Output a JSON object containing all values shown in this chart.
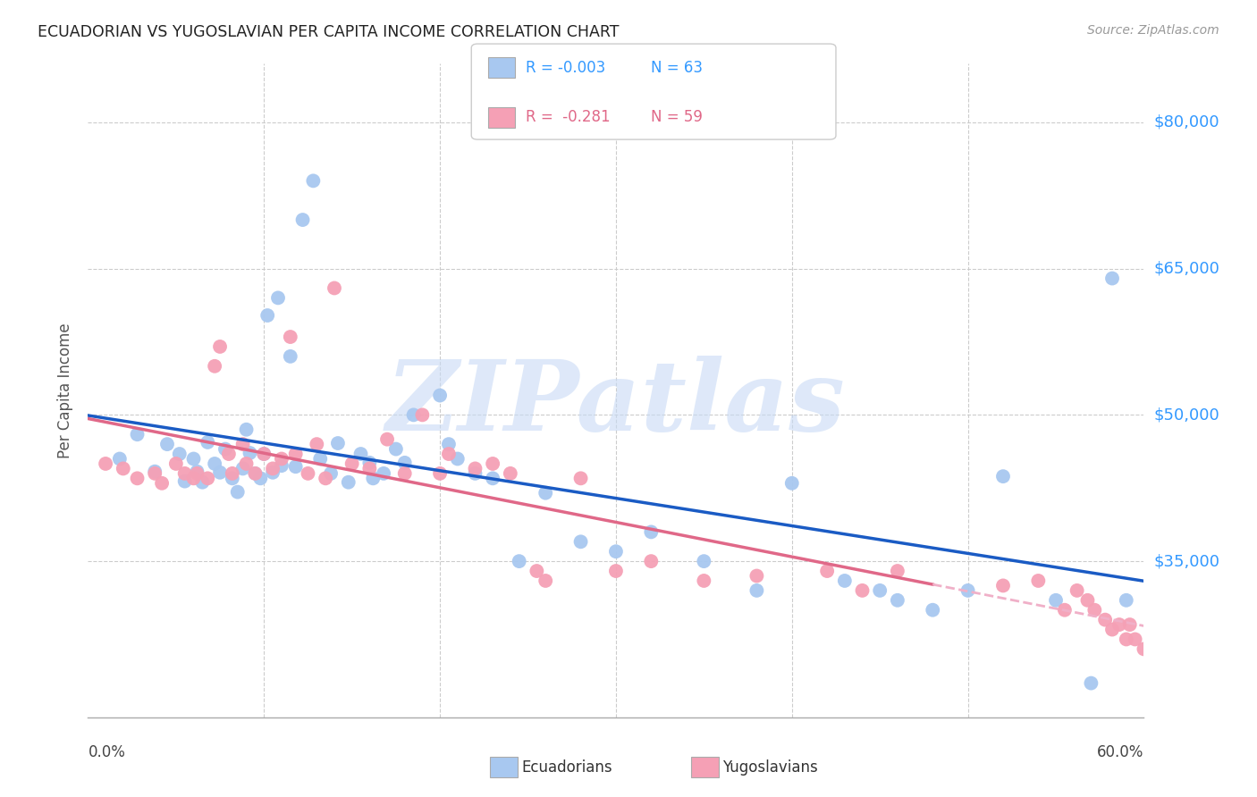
{
  "title": "ECUADORIAN VS YUGOSLAVIAN PER CAPITA INCOME CORRELATION CHART",
  "source": "Source: ZipAtlas.com",
  "ylabel": "Per Capita Income",
  "xmin": 0.0,
  "xmax": 0.6,
  "ymin": 19000,
  "ymax": 86000,
  "ecuadorians_color": "#a8c8f0",
  "yugoslavians_color": "#f5a0b5",
  "trend_ecu_color": "#1a5bc4",
  "trend_yugo_solid_color": "#e06888",
  "trend_yugo_dash_color": "#f0b0c8",
  "watermark": "ZIPatlas",
  "watermark_color": "#c8daf5",
  "grid_color": "#cccccc",
  "ytick_vals": [
    35000,
    50000,
    65000,
    80000
  ],
  "ytick_labels": [
    "$35,000",
    "$50,000",
    "$65,000",
    "$80,000"
  ],
  "ecu_R": "-0.003",
  "ecu_N": "63",
  "yugo_R": "-0.281",
  "yugo_N": "59",
  "ecu_scatter_x": [
    0.018,
    0.028,
    0.038,
    0.045,
    0.052,
    0.055,
    0.06,
    0.062,
    0.065,
    0.068,
    0.072,
    0.075,
    0.078,
    0.082,
    0.085,
    0.088,
    0.09,
    0.092,
    0.095,
    0.098,
    0.1,
    0.102,
    0.105,
    0.108,
    0.11,
    0.115,
    0.118,
    0.122,
    0.128,
    0.132,
    0.138,
    0.142,
    0.148,
    0.155,
    0.16,
    0.162,
    0.168,
    0.175,
    0.18,
    0.185,
    0.2,
    0.205,
    0.21,
    0.22,
    0.23,
    0.245,
    0.26,
    0.28,
    0.3,
    0.32,
    0.35,
    0.38,
    0.4,
    0.43,
    0.45,
    0.46,
    0.48,
    0.5,
    0.52,
    0.55,
    0.57,
    0.582,
    0.59
  ],
  "ecu_scatter_y": [
    45500,
    48000,
    44200,
    47000,
    46000,
    43200,
    45500,
    44200,
    43100,
    47200,
    45000,
    44100,
    46500,
    43500,
    42100,
    44500,
    48500,
    46100,
    44000,
    43500,
    46000,
    60200,
    44100,
    62000,
    44800,
    56000,
    44700,
    70000,
    74000,
    45500,
    44000,
    47100,
    43100,
    46000,
    45100,
    43500,
    44000,
    46500,
    45100,
    50000,
    52000,
    47000,
    45500,
    44000,
    43500,
    35000,
    42000,
    37000,
    36000,
    38000,
    35000,
    32000,
    43000,
    33000,
    32000,
    31000,
    30000,
    32000,
    43700,
    31000,
    22500,
    64000,
    31000
  ],
  "yugo_scatter_x": [
    0.01,
    0.02,
    0.028,
    0.038,
    0.042,
    0.05,
    0.055,
    0.06,
    0.062,
    0.068,
    0.072,
    0.075,
    0.08,
    0.082,
    0.088,
    0.09,
    0.095,
    0.1,
    0.105,
    0.11,
    0.115,
    0.118,
    0.125,
    0.13,
    0.135,
    0.14,
    0.15,
    0.16,
    0.17,
    0.18,
    0.19,
    0.2,
    0.205,
    0.22,
    0.23,
    0.24,
    0.255,
    0.26,
    0.28,
    0.3,
    0.32,
    0.35,
    0.38,
    0.42,
    0.44,
    0.46,
    0.52,
    0.54,
    0.555,
    0.562,
    0.568,
    0.572,
    0.578,
    0.582,
    0.586,
    0.59,
    0.592,
    0.595,
    0.6
  ],
  "yugo_scatter_y": [
    45000,
    44500,
    43500,
    44000,
    43000,
    45000,
    44000,
    43500,
    44000,
    43500,
    55000,
    57000,
    46000,
    44000,
    47000,
    45000,
    44000,
    46000,
    44500,
    45500,
    58000,
    46000,
    44000,
    47000,
    43500,
    63000,
    45000,
    44500,
    47500,
    44000,
    50000,
    44000,
    46000,
    44500,
    45000,
    44000,
    34000,
    33000,
    43500,
    34000,
    35000,
    33000,
    33500,
    34000,
    32000,
    34000,
    32500,
    33000,
    30000,
    32000,
    31000,
    30000,
    29000,
    28000,
    28500,
    27000,
    28500,
    27000,
    26000
  ]
}
